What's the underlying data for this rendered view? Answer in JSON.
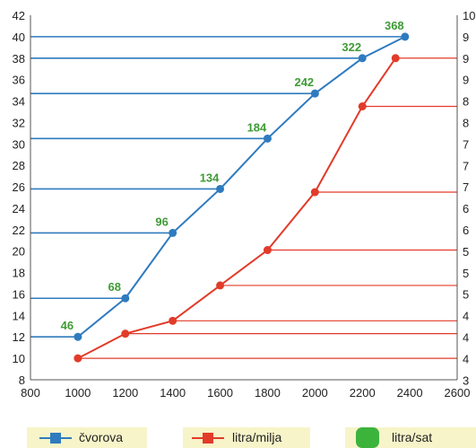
{
  "chart_data": {
    "type": "line",
    "x_ticks": [
      800,
      1000,
      1200,
      1400,
      1600,
      1800,
      2000,
      2200,
      2400,
      2600
    ],
    "y_ticks": [
      8,
      10,
      12,
      14,
      16,
      18,
      20,
      22,
      24,
      26,
      28,
      30,
      32,
      34,
      36,
      38,
      40,
      42
    ],
    "right_ticks": [
      "10",
      "9",
      "9",
      "9",
      "8",
      "8",
      "7",
      "7",
      "7",
      "6",
      "6",
      "5",
      "5",
      "5",
      "4",
      "4",
      "4",
      "3"
    ],
    "xlim": [
      800,
      2600
    ],
    "ylim": [
      8,
      42
    ],
    "grid": false,
    "series": [
      {
        "name": "čvorova",
        "color": "#2f7bbf",
        "x": [
          1000,
          1200,
          1400,
          1600,
          1800,
          2000,
          2200,
          2380
        ],
        "y": [
          12,
          15.6,
          21.7,
          25.8,
          30.5,
          34.7,
          38,
          40
        ],
        "labels": [
          "46",
          "68",
          "96",
          "134",
          "184",
          "242",
          "322",
          "368"
        ]
      },
      {
        "name": "litra/milja",
        "color": "#e23b2a",
        "x": [
          1000,
          1200,
          1400,
          1600,
          1800,
          2000,
          2200,
          2340
        ],
        "y": [
          10,
          12.3,
          13.5,
          16.8,
          20.1,
          25.5,
          33.5,
          38
        ]
      }
    ],
    "legend": [
      {
        "label": "čvorova",
        "color": "#2f7bbf"
      },
      {
        "label": "litra/milja",
        "color": "#e23b2a"
      },
      {
        "label": "litra/sat",
        "color": "#3cb43c"
      }
    ]
  }
}
